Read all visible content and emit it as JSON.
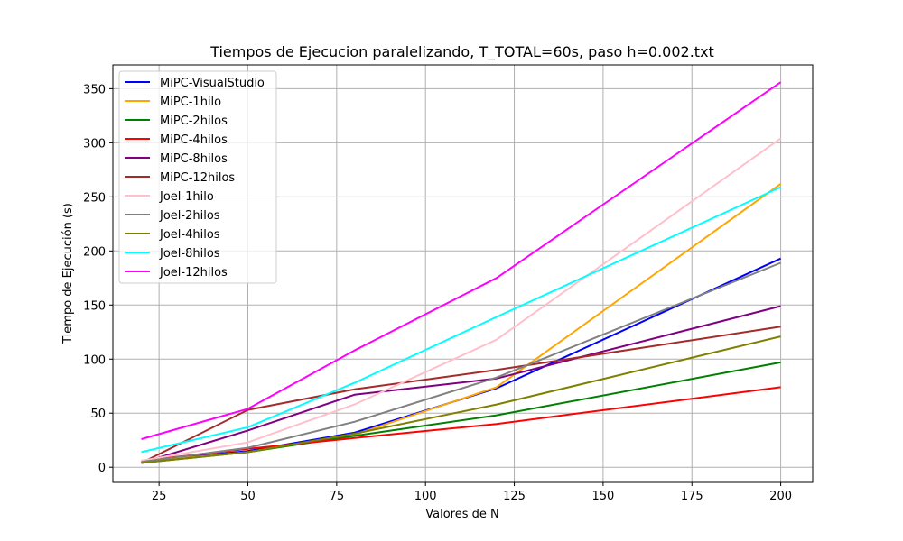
{
  "chart_data": {
    "type": "line",
    "title": "Tiempos de Ejecucion paralelizando, T_TOTAL=60s, paso h=0.002.txt",
    "xlabel": "Valores de N",
    "ylabel": "Tiempo de Ejecución (s)",
    "x": [
      20,
      50,
      80,
      120,
      200
    ],
    "xlim": [
      12,
      209
    ],
    "ylim": [
      -14,
      372
    ],
    "xticks": [
      25,
      50,
      75,
      100,
      125,
      150,
      175,
      200
    ],
    "yticks": [
      0,
      50,
      100,
      150,
      200,
      250,
      300,
      350
    ],
    "grid": true,
    "legend_position": "top-left",
    "series": [
      {
        "name": "MiPC-VisualStudio",
        "color": "#0000ff",
        "values": [
          5,
          15,
          32,
          73,
          193
        ]
      },
      {
        "name": "MiPC-1hilo",
        "color": "#ffa500",
        "values": [
          5,
          14,
          30,
          74,
          262
        ]
      },
      {
        "name": "MiPC-2hilos",
        "color": "#008000",
        "values": [
          4,
          14,
          29,
          48,
          97
        ]
      },
      {
        "name": "MiPC-4hilos",
        "color": "#ff0000",
        "values": [
          6,
          17,
          27,
          40,
          74
        ]
      },
      {
        "name": "MiPC-8hilos",
        "color": "#800080",
        "values": [
          4,
          34,
          67,
          82,
          149
        ]
      },
      {
        "name": "MiPC-12hilos",
        "color": "#a52a2a",
        "values": [
          4,
          53,
          72,
          90,
          130
        ]
      },
      {
        "name": "Joel-1hilo",
        "color": "#ffc0cb",
        "values": [
          6,
          23,
          58,
          118,
          304
        ]
      },
      {
        "name": "Joel-2hilos",
        "color": "#808080",
        "values": [
          5,
          18,
          42,
          83,
          189
        ]
      },
      {
        "name": "Joel-4hilos",
        "color": "#808000",
        "values": [
          4,
          14,
          31,
          58,
          121
        ]
      },
      {
        "name": "Joel-8hilos",
        "color": "#00ffff",
        "values": [
          14,
          37,
          78,
          139,
          259
        ]
      },
      {
        "name": "Joel-12hilos",
        "color": "#ff00ff",
        "values": [
          26,
          54,
          108,
          175,
          356
        ]
      }
    ]
  }
}
